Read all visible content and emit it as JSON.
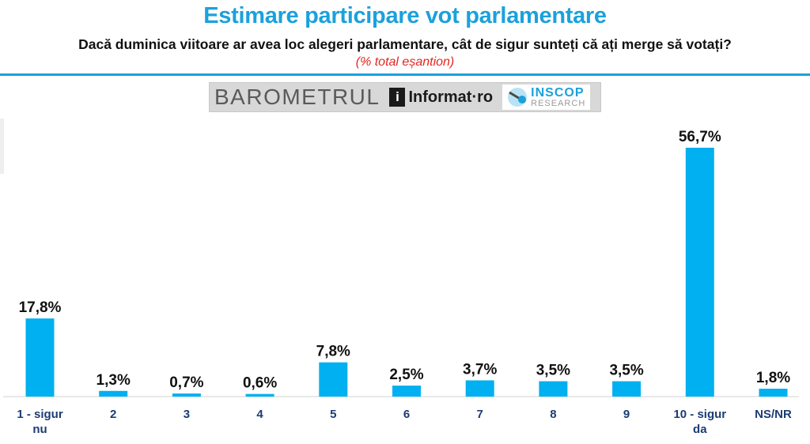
{
  "header": {
    "title": "Estimare participare vot parlamentare",
    "question": "Dacă duminica viitoare ar avea loc alegeri parlamentare, cât de sigur sunteți că ați merge să votați?",
    "note": "(% total eșantion)"
  },
  "banner": {
    "word": "BAROMETRUL",
    "brand_mark": "i",
    "brand": "Informat·ro",
    "partner_name": "INSCOP",
    "partner_sub": "RESEARCH"
  },
  "colors": {
    "accent": "#1ba1dc",
    "bar": "#00b0f0",
    "note": "#e3261f"
  },
  "chart_data": {
    "type": "bar",
    "categories": [
      "1 - sigur nu",
      "2",
      "3",
      "4",
      "5",
      "6",
      "7",
      "8",
      "9",
      "10 - sigur da",
      "NS/NR"
    ],
    "values": [
      17.8,
      1.3,
      0.7,
      0.6,
      7.8,
      2.5,
      3.7,
      3.5,
      3.5,
      56.7,
      1.8
    ],
    "data_labels": [
      "17,8%",
      "1,3%",
      "0,7%",
      "0,6%",
      "7,8%",
      "2,5%",
      "3,7%",
      "3,5%",
      "3,5%",
      "56,7%",
      "1,8%"
    ],
    "category_lines": [
      [
        "1 - sigur",
        "nu"
      ],
      [
        "2"
      ],
      [
        "3"
      ],
      [
        "4"
      ],
      [
        "5"
      ],
      [
        "6"
      ],
      [
        "7"
      ],
      [
        "8"
      ],
      [
        "9"
      ],
      [
        "10 - sigur",
        "da"
      ],
      [
        "NS/NR"
      ]
    ],
    "ylim": [
      0,
      60
    ],
    "grid": false,
    "legend": "none"
  }
}
